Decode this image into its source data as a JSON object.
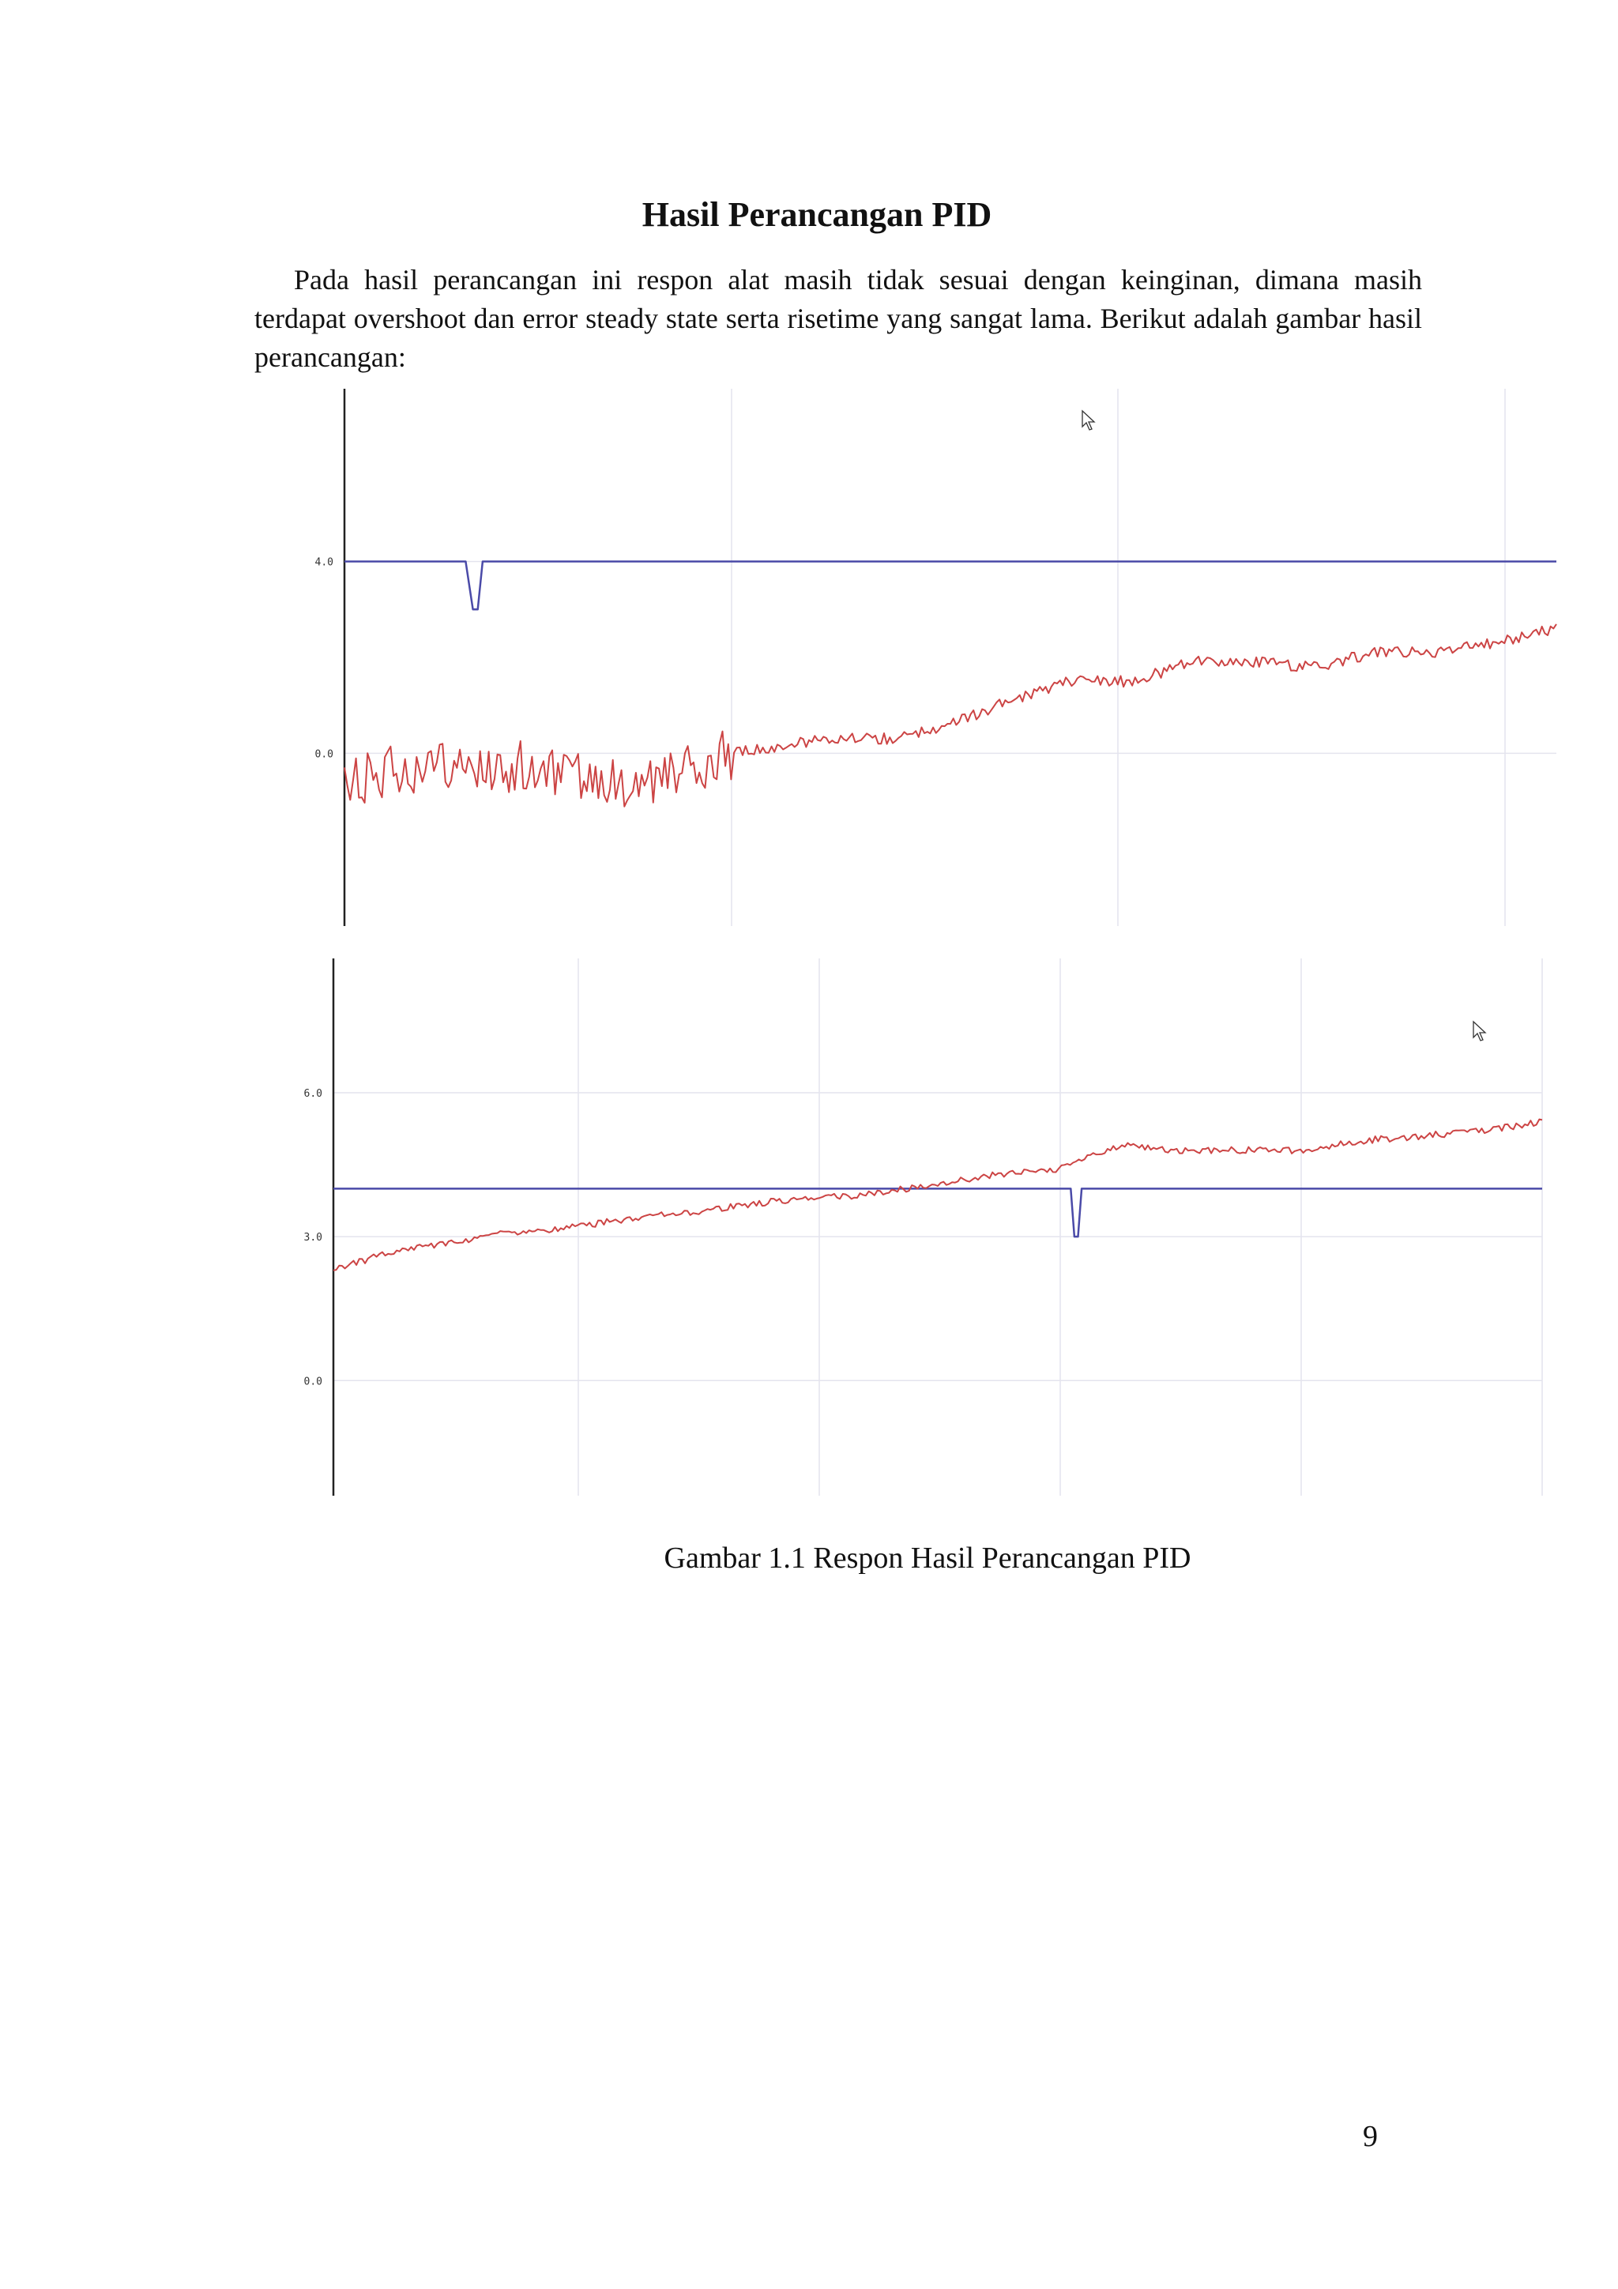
{
  "document": {
    "title": "Hasil Perancangan PID",
    "paragraph": "Pada hasil perancangan ini respon alat masih tidak sesuai dengan keinginan, dimana masih terdapat overshoot dan error steady state serta risetime yang sangat lama. Berikut adalah gambar hasil perancangan:",
    "caption": "Gambar 1.1 Respon Hasil Perancangan PID",
    "page_number": "9"
  },
  "chart_data": [
    {
      "type": "line",
      "title": "",
      "xlabel": "",
      "ylabel": "",
      "ylim": [
        -3.6,
        7.6
      ],
      "yticks": [
        0.0,
        4.0
      ],
      "ytick_labels": [
        "0.0",
        "4.0"
      ],
      "grid": true,
      "x_range": [
        0,
        100
      ],
      "series": [
        {
          "color": "#4a4aa8",
          "x": [
            0,
            10,
            10.6,
            11.0,
            11.4,
            100
          ],
          "values": [
            4.0,
            4.0,
            3.0,
            3.0,
            4.0,
            4.0
          ]
        },
        {
          "color": "#cc4444",
          "x": [
            0,
            5,
            10,
            15,
            20,
            25,
            32,
            40,
            45,
            50,
            55,
            60,
            65,
            70,
            75,
            80,
            85,
            90,
            95,
            100
          ],
          "values": [
            -0.7,
            -0.3,
            -0.2,
            -0.3,
            -0.5,
            -0.7,
            0.0,
            0.3,
            0.3,
            0.6,
            1.1,
            1.5,
            1.5,
            1.9,
            1.9,
            1.8,
            2.1,
            2.1,
            2.3,
            2.6
          ]
        }
      ]
    },
    {
      "type": "line",
      "title": "",
      "xlabel": "",
      "ylabel": "",
      "ylim": [
        -2.4,
        8.8
      ],
      "yticks": [
        0.0,
        3.0,
        6.0
      ],
      "ytick_labels": [
        "0.0",
        "3.0",
        "6.0"
      ],
      "grid": true,
      "x_range": [
        0,
        100
      ],
      "series": [
        {
          "color": "#4a4aa8",
          "x": [
            0,
            61,
            61.3,
            61.6,
            61.9,
            100
          ],
          "values": [
            4.0,
            4.0,
            3.0,
            3.0,
            4.0,
            4.0
          ]
        },
        {
          "color": "#cc4444",
          "x": [
            0,
            5,
            10,
            15,
            20,
            25,
            30,
            35,
            40,
            45,
            50,
            55,
            60,
            65,
            70,
            75,
            80,
            85,
            90,
            95,
            100
          ],
          "values": [
            2.3,
            2.7,
            2.9,
            3.1,
            3.2,
            3.4,
            3.5,
            3.7,
            3.8,
            3.9,
            4.1,
            4.3,
            4.4,
            4.9,
            4.8,
            4.8,
            4.8,
            5.0,
            5.1,
            5.2,
            5.4
          ]
        }
      ]
    }
  ]
}
